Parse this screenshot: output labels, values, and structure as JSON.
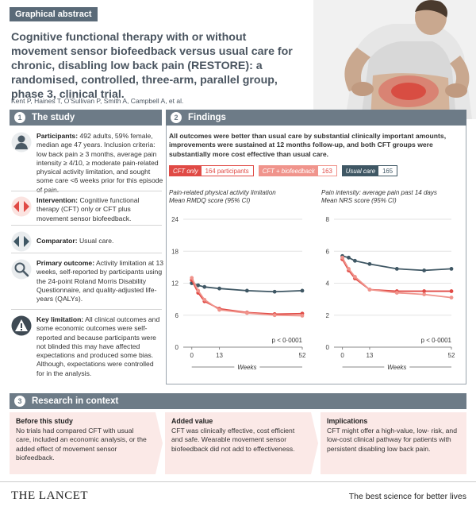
{
  "header": {
    "tag": "Graphical abstract",
    "title": "Cognitive functional therapy with or without movement sensor biofeedback versus usual care for chronic, disabling low back pain (RESTORE): a randomised, controlled, three-arm, parallel group, phase 3, clinical trial.",
    "authors": "Kent P, Haines T, O’Sullivan P, Smith A, Campbell A, et al."
  },
  "study": {
    "number": "1",
    "heading": "The study",
    "participants_label": "Participants:",
    "participants_text": "492 adults, 59% female, median age 47 years. Inclusion criteria: low back pain ≥ 3 months, average pain intensity ≥ 4/10, ≥ moderate pain-related physical activity limitation, and sought some care <6 weeks prior for this episode of pain.",
    "intervention_label": "Intervention:",
    "intervention_text": "Cognitive functional therapy (CFT) only or CFT plus movement sensor biofeedback.",
    "comparator_label": "Comparator:",
    "comparator_text": "Usual care.",
    "outcome_label": "Primary outcome:",
    "outcome_text": "Activity limitation at 13 weeks, self-reported by participants using the 24-point Roland Morris Disability Questionnaire, and quality-adjusted life-years (QALYs).",
    "limitation_label": "Key limitation:",
    "limitation_text": "All clinical outcomes and some economic outcomes were self-reported and because participants were not blinded this may have affected expectations and produced some bias. Although, expectations were controlled for in the analysis."
  },
  "findings": {
    "number": "2",
    "heading": "Findings",
    "summary": "All outcomes were better than usual care by substantial clinically important amounts, improvements were sustained at 12 months follow-up, and both CFT groups were substantially more cost effective than usual care.",
    "legend": [
      {
        "name": "CFT only",
        "count": "164 participants",
        "color": "#e04a45"
      },
      {
        "name": "CFT + biofeedback",
        "count": "163",
        "color": "#f0948c"
      },
      {
        "name": "Usual care",
        "count": "165",
        "color": "#3f5764"
      }
    ]
  },
  "chart_data": [
    {
      "type": "line",
      "title": "Pain-related physical activity limitation",
      "subtitle": "Mean RMDQ score (95% CI)",
      "xlabel": "Weeks",
      "ylim": [
        0,
        24
      ],
      "yticks": [
        "0",
        "6",
        "12",
        "18",
        "24"
      ],
      "xticks": [
        "0",
        "13",
        "52"
      ],
      "annotation": "p < 0·0001",
      "series": [
        {
          "name": "Usual care",
          "x": [
            0,
            3,
            6,
            13,
            26,
            39,
            52
          ],
          "values": [
            12.0,
            11.6,
            11.3,
            11.0,
            10.6,
            10.4,
            10.6
          ]
        },
        {
          "name": "CFT only",
          "x": [
            0,
            3,
            6,
            13,
            26,
            39,
            52
          ],
          "values": [
            12.6,
            10.2,
            8.6,
            7.2,
            6.5,
            6.2,
            6.3
          ]
        },
        {
          "name": "CFT + biofeedback",
          "x": [
            0,
            3,
            6,
            13,
            26,
            39,
            52
          ],
          "values": [
            13.0,
            10.6,
            8.9,
            7.0,
            6.4,
            6.0,
            5.9
          ]
        }
      ]
    },
    {
      "type": "line",
      "title": "Pain intensity: average pain past 14 days",
      "subtitle": "Mean NRS score (95% CI)",
      "xlabel": "Weeks",
      "ylim": [
        0,
        8
      ],
      "yticks": [
        "0",
        "2",
        "4",
        "6",
        "8"
      ],
      "xticks": [
        "0",
        "13",
        "52"
      ],
      "annotation": "p < 0·0001",
      "series": [
        {
          "name": "Usual care",
          "x": [
            0,
            3,
            6,
            13,
            26,
            39,
            52
          ],
          "values": [
            5.7,
            5.6,
            5.4,
            5.2,
            4.9,
            4.8,
            4.9
          ]
        },
        {
          "name": "CFT only",
          "x": [
            0,
            3,
            6,
            13,
            26,
            39,
            52
          ],
          "values": [
            5.5,
            4.8,
            4.3,
            3.6,
            3.5,
            3.5,
            3.5
          ]
        },
        {
          "name": "CFT + biofeedback",
          "x": [
            0,
            3,
            6,
            13,
            26,
            39,
            52
          ],
          "values": [
            5.6,
            4.9,
            4.4,
            3.6,
            3.4,
            3.3,
            3.1
          ]
        }
      ]
    }
  ],
  "context": {
    "number": "3",
    "heading": "Research in context",
    "before_title": "Before this study",
    "before_text": "No trials had compared CFT with usual care, included an economic analysis, or the added effect of movement sensor biofeedback.",
    "added_title": "Added value",
    "added_text": "CFT was clinically effective, cost efficient and safe. Wearable movement sensor biofeedback did not add to effectiveness.",
    "impl_title": "Implications",
    "impl_text": "CFT might offer a high-value, low- risk, and low-cost clinical pathway for patients with persistent disabling low back pain."
  },
  "footer": {
    "logo": "THE LANCET",
    "tagline": "The best science for better lives"
  }
}
